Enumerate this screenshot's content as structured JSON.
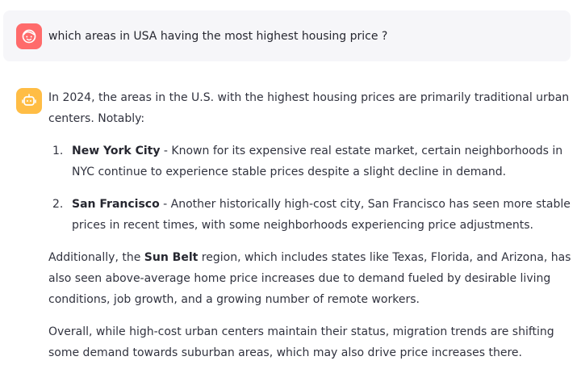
{
  "user": {
    "avatar_icon": "user-face-icon",
    "avatar_color": "#ff6b6b",
    "message": "which areas in USA having the most highest housing price ?"
  },
  "assistant": {
    "avatar_icon": "robot-icon",
    "avatar_color": "#ffbd45",
    "intro": "In 2024, the areas in the U.S. with the highest housing prices are primarily traditional urban centers. Notably:",
    "list": [
      {
        "num": "1.",
        "title": "New York City",
        "text": " - Known for its expensive real estate market, certain neighborhoods in NYC continue to experience stable prices despite a slight decline in demand."
      },
      {
        "num": "2.",
        "title": "San Francisco",
        "text": " - Another historically high-cost city, San Francisco has seen more stable prices in recent times, with some neighborhoods experiencing price adjustments."
      }
    ],
    "para2": {
      "pre": "Additionally, the ",
      "bold": "Sun Belt",
      "post": " region, which includes states like Texas, Florida, and Arizona, has also seen above-average home price increases due to demand fueled by desirable living conditions, job growth, and a growing number of remote workers."
    },
    "para3": "Overall, while high-cost urban centers maintain their status, migration trends are shifting some demand towards suburban areas, which may also drive price increases there."
  }
}
